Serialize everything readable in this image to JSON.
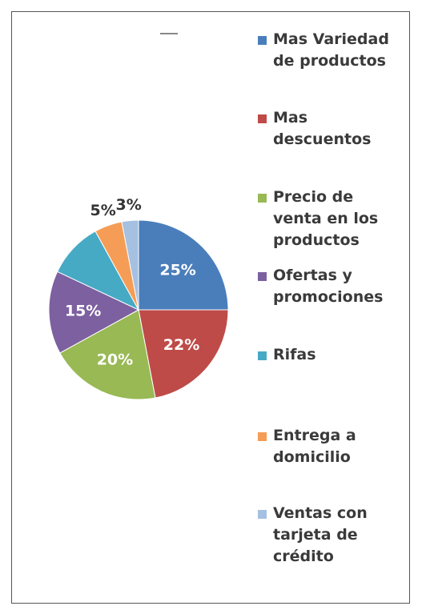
{
  "chart_data": {
    "type": "pie",
    "categories": [
      "Mas Variedad de productos",
      "Mas descuentos",
      "Precio de venta en los productos",
      "Ofertas y promociones",
      "Rifas",
      "Entrega a domicilio",
      "Ventas con tarjeta de crédito"
    ],
    "values": [
      25,
      22,
      20,
      15,
      10,
      5,
      3
    ],
    "value_labels": [
      "25%",
      "22%",
      "20%",
      "15%",
      null,
      "5%",
      "3%"
    ],
    "colors": [
      "#4a7ebb",
      "#be4b48",
      "#98b954",
      "#7d60a0",
      "#46aac5",
      "#f59d56",
      "#a5c0e0"
    ],
    "legend": "right"
  }
}
